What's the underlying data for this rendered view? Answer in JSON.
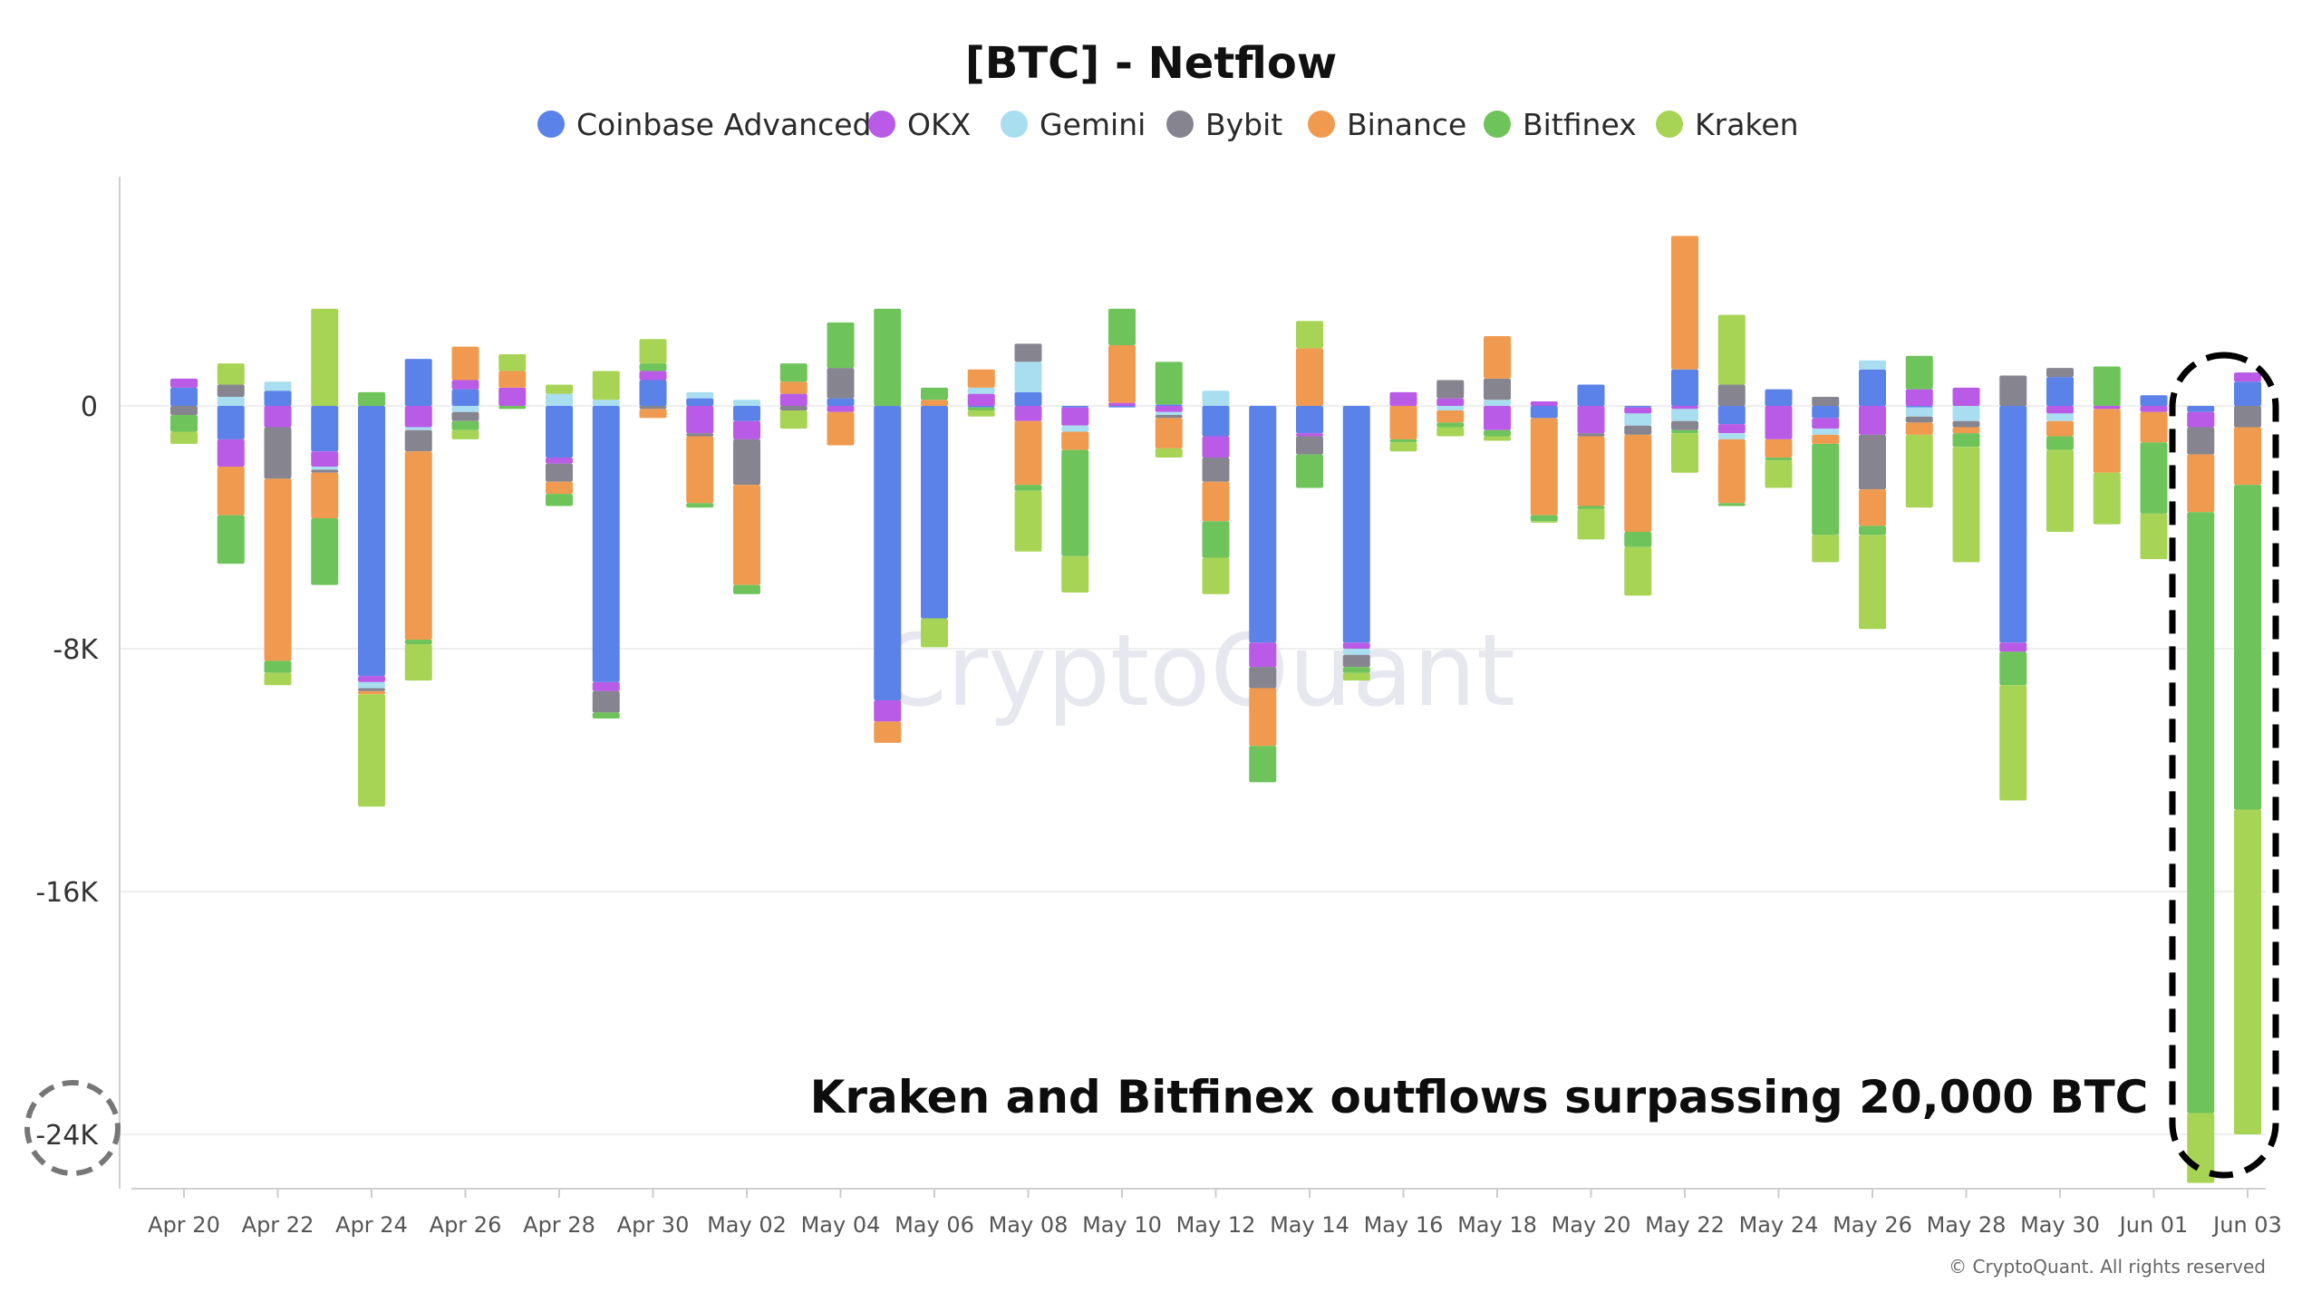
{
  "chart_data": {
    "type": "bar",
    "stacked": true,
    "title": "[BTC] - Netflow",
    "legend_position": "top",
    "grid": true,
    "ylim": [
      -24500,
      7500
    ],
    "y_ticks": [
      {
        "value": 0,
        "label": "0"
      },
      {
        "value": -8000,
        "label": "-8K"
      },
      {
        "value": -16000,
        "label": "-16K"
      },
      {
        "value": -24000,
        "label": "-24K"
      }
    ],
    "x_ticks": [
      "Apr 20",
      "Apr 22",
      "Apr 24",
      "Apr 26",
      "Apr 28",
      "Apr 30",
      "May 02",
      "May 04",
      "May 06",
      "May 08",
      "May 10",
      "May 12",
      "May 14",
      "May 16",
      "May 18",
      "May 20",
      "May 22",
      "May 24",
      "May 26",
      "May 28",
      "May 30",
      "Jun 01",
      "Jun 03"
    ],
    "categories": [
      "Apr 20",
      "Apr 21",
      "Apr 22",
      "Apr 23",
      "Apr 24",
      "Apr 25",
      "Apr 26",
      "Apr 27",
      "Apr 28",
      "Apr 29",
      "Apr 30",
      "May 01",
      "May 02",
      "May 03",
      "May 04",
      "May 05",
      "May 06",
      "May 07",
      "May 08",
      "May 09",
      "May 10",
      "May 11",
      "May 12",
      "May 13",
      "May 14",
      "May 15",
      "May 16",
      "May 17",
      "May 18",
      "May 19",
      "May 20",
      "May 21",
      "May 22",
      "May 23",
      "May 24",
      "May 25",
      "May 26",
      "May 27",
      "May 28",
      "May 29",
      "May 30",
      "May 31",
      "Jun 01",
      "Jun 02",
      "Jun 03"
    ],
    "series": [
      {
        "name": "Coinbase Advanced",
        "color": "#5b82e8",
        "values": [
          600,
          -1100,
          500,
          -1500,
          -8900,
          1550,
          550,
          0,
          -1700,
          -9100,
          850,
          250,
          -500,
          0,
          250,
          -9700,
          -7000,
          -50,
          450,
          -50,
          -50,
          50,
          -1000,
          -7800,
          -900,
          -7800,
          0,
          0,
          0,
          -400,
          700,
          -50,
          1200,
          -600,
          550,
          -400,
          1200,
          -50,
          0,
          -7800,
          950,
          0,
          350,
          -200,
          800
        ]
      },
      {
        "name": "OKX",
        "color": "#b95be6",
        "values": [
          300,
          -900,
          -700,
          -500,
          -200,
          -700,
          300,
          600,
          -200,
          -300,
          300,
          -900,
          -600,
          400,
          -200,
          -700,
          0,
          400,
          -500,
          -600,
          100,
          -200,
          -700,
          -800,
          -100,
          -200,
          450,
          250,
          -800,
          150,
          -900,
          -200,
          -100,
          -300,
          -1100,
          -350,
          -950,
          550,
          600,
          -300,
          -250,
          -100,
          -200,
          -500,
          300
        ]
      },
      {
        "name": "Gemini",
        "color": "#a9def0",
        "values": [
          0,
          300,
          300,
          -100,
          -200,
          -100,
          -200,
          0,
          400,
          200,
          0,
          200,
          200,
          0,
          0,
          0,
          0,
          200,
          1000,
          -200,
          0,
          -100,
          500,
          0,
          0,
          -200,
          0,
          -150,
          200,
          0,
          0,
          -400,
          -400,
          -200,
          0,
          -200,
          300,
          -300,
          -500,
          0,
          -250,
          0,
          0,
          0,
          0
        ]
      },
      {
        "name": "Bybit",
        "color": "#86858f",
        "values": [
          -300,
          400,
          -1700,
          -100,
          -100,
          -700,
          -300,
          0,
          -600,
          -700,
          -100,
          -100,
          -1500,
          -150,
          1000,
          0,
          0,
          0,
          600,
          0,
          0,
          -100,
          -800,
          -700,
          -600,
          -400,
          0,
          600,
          700,
          0,
          -100,
          -300,
          -300,
          700,
          0,
          300,
          -1800,
          -200,
          -200,
          1000,
          300,
          0,
          0,
          -900,
          -700
        ]
      },
      {
        "name": "Binance",
        "color": "#f09a4f",
        "values": [
          0,
          -1600,
          -6000,
          -1500,
          -100,
          -6200,
          1100,
          550,
          -400,
          0,
          -300,
          -2200,
          -3300,
          400,
          -1100,
          -700,
          200,
          600,
          -2100,
          -600,
          1900,
          -1000,
          -1300,
          -1900,
          1900,
          0,
          -1100,
          -400,
          1400,
          -3200,
          -2300,
          -3200,
          4400,
          -2100,
          -600,
          -300,
          -1200,
          -400,
          -200,
          0,
          -500,
          -2100,
          -1000,
          -1900,
          -1900
        ]
      },
      {
        "name": "Bitfinex",
        "color": "#6ec45a",
        "values": [
          -550,
          -1600,
          -400,
          -2200,
          450,
          -150,
          -300,
          -100,
          -400,
          -200,
          250,
          -150,
          -300,
          600,
          1500,
          3200,
          400,
          -100,
          -200,
          -3500,
          1200,
          1400,
          -1200,
          -1200,
          -1100,
          -200,
          -100,
          -150,
          -200,
          -200,
          -100,
          -500,
          -100,
          -100,
          -100,
          -3000,
          -300,
          1100,
          -450,
          -1100,
          -450,
          1300,
          -2350,
          -19800,
          -10700
        ]
      },
      {
        "name": "Kraken",
        "color": "#a8d455",
        "values": [
          -400,
          700,
          -400,
          3200,
          -3700,
          -1200,
          -300,
          550,
          300,
          950,
          800,
          0,
          0,
          -600,
          0,
          0,
          -950,
          -200,
          -2000,
          -1200,
          0,
          -300,
          -1200,
          0,
          900,
          -250,
          -300,
          -300,
          -150,
          -50,
          -1000,
          -1600,
          -1300,
          2300,
          -900,
          -900,
          -3100,
          -2400,
          -3800,
          -3800,
          -2700,
          -1700,
          -1500,
          -2300,
          -10700
        ]
      }
    ],
    "annotation": "Kraken and Bitfinex outflows surpassing 20,000 BTC",
    "watermark": "CryptoQuant",
    "copyright": "© CryptoQuant. All rights reserved"
  }
}
